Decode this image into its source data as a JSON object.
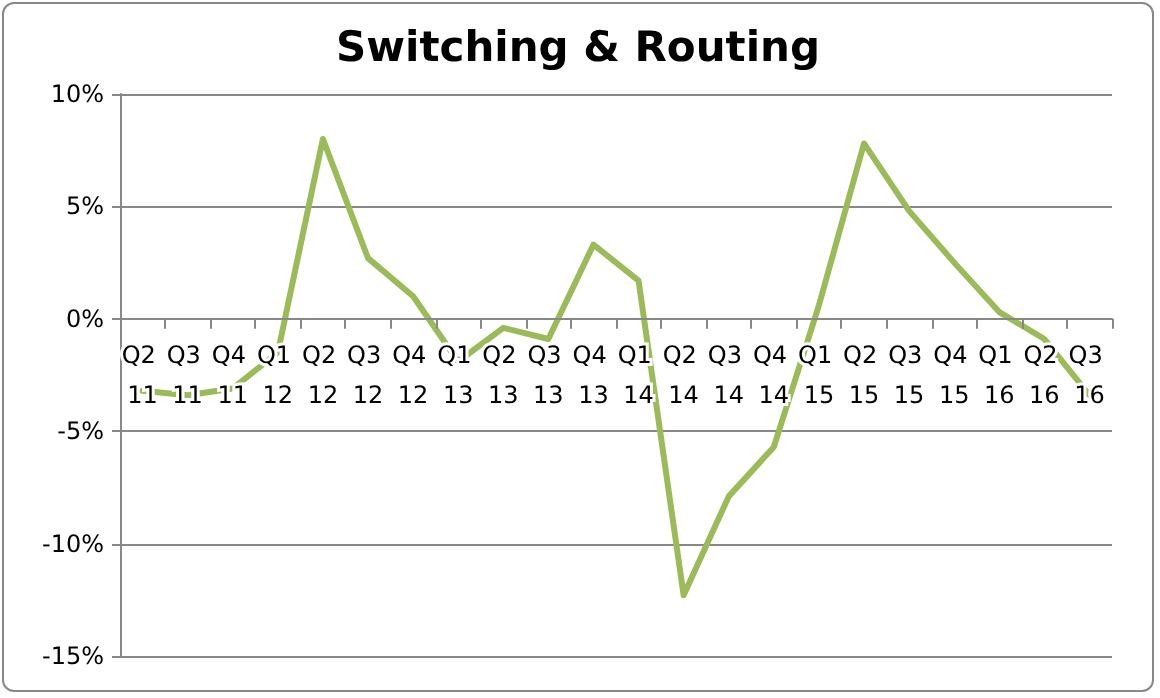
{
  "chart_data": {
    "type": "line",
    "title": "Switching & Routing",
    "categories": [
      "Q2 11",
      "Q3 11",
      "Q4 11",
      "Q1 12",
      "Q2 12",
      "Q3 12",
      "Q4 12",
      "Q1 13",
      "Q2 13",
      "Q3 13",
      "Q4 13",
      "Q1 14",
      "Q2 14",
      "Q3 14",
      "Q4 14",
      "Q1 15",
      "Q2 15",
      "Q3 15",
      "Q4 15",
      "Q1 16",
      "Q2 16",
      "Q3 16"
    ],
    "series": [
      {
        "color": "#9bbb59",
        "values": [
          -3.2,
          -3.4,
          -3.1,
          -1.5,
          8.0,
          2.7,
          1.0,
          -1.9,
          -0.4,
          -0.9,
          3.3,
          1.7,
          -12.3,
          -7.9,
          -5.7,
          0.6,
          7.8,
          4.8,
          2.5,
          0.3,
          -0.9,
          -3.4
        ]
      }
    ],
    "ylim": [
      -15,
      10
    ],
    "yticks": [
      {
        "value": -15,
        "label": "-15%"
      },
      {
        "value": -10,
        "label": "-10%"
      },
      {
        "value": -5,
        "label": "-5%"
      },
      {
        "value": 0,
        "label": "0%"
      },
      {
        "value": 5,
        "label": "5%"
      },
      {
        "value": 10,
        "label": "10%"
      }
    ],
    "grid": "y",
    "marker": "none",
    "line_style": "solid"
  }
}
